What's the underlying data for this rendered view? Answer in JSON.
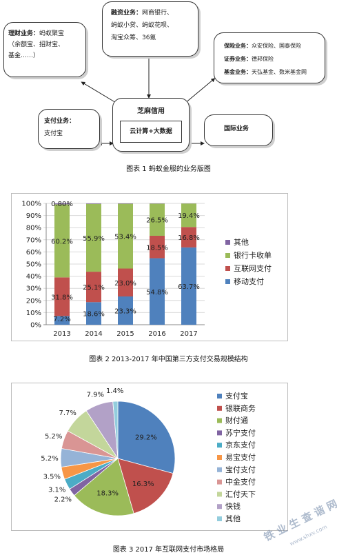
{
  "diagram": {
    "licai": {
      "label": "理财业务：",
      "text": "蚂蚁聚宝",
      "line2": "（余额宝、招财宝、",
      "line3": "基金……）"
    },
    "rongzi": {
      "label": "融资业务：",
      "text": "网商银行、",
      "line2": "蚂蚁小贷、蚂蚁花呗、",
      "line3": "淘宝众筹、36氪"
    },
    "baoxian": {
      "label1": "保险业务：",
      "text1": "众安保险、国泰保险",
      "label2": "证券业务：",
      "text2": "德邦保险",
      "label3": "基金业务：",
      "text3": "天弘基金、数米基金网"
    },
    "zhifu": {
      "label": "支付业务：",
      "text": "支付宝"
    },
    "center": {
      "title": "芝麻信用",
      "inner": "云计算+大数据"
    },
    "guoji": {
      "label": "国际业务"
    }
  },
  "caption1": "图表 1 蚂蚁金服的业务版图",
  "caption2": "图表 2 2013-2017 年中国第三方支付交易规模结构",
  "caption3": "图表 3 2017 年互联网支付市场格局",
  "watermark": {
    "text": "铁 业 生 查 谐 网",
    "sub": "www.shxv.com"
  },
  "chart_data": [
    {
      "type": "bar",
      "stacked": true,
      "categories": [
        "2013",
        "2014",
        "2015",
        "2016",
        "2017"
      ],
      "ylim": [
        0,
        100
      ],
      "yticks": [
        "0%",
        "10%",
        "20%",
        "30%",
        "40%",
        "50%",
        "60%",
        "70%",
        "80%",
        "90%",
        "100%"
      ],
      "series": [
        {
          "name": "移动支付",
          "color": "#4f81bd",
          "values": [
            7.2,
            18.6,
            23.3,
            54.8,
            63.7
          ],
          "labels": [
            "7.2%",
            "18.6%",
            "23.3%",
            "54.8%",
            "63.7%"
          ]
        },
        {
          "name": "互联网支付",
          "color": "#c0504d",
          "values": [
            31.8,
            25.1,
            23.0,
            18.5,
            16.8
          ],
          "labels": [
            "31.8%",
            "25.1%",
            "23.0%",
            "18.5%",
            "16.8%"
          ]
        },
        {
          "name": "银行卡收单",
          "color": "#9bbb59",
          "values": [
            60.2,
            55.9,
            53.4,
            26.5,
            19.4
          ],
          "labels": [
            "60.2%",
            "55.9%",
            "53.4%",
            "26.5%",
            "19.4%"
          ]
        },
        {
          "name": "其他",
          "color": "#8064a2",
          "values": [
            0.8,
            0.4,
            0.3,
            0.2,
            0.1
          ],
          "labels": [
            "0.80%",
            "",
            "",
            "",
            ""
          ]
        }
      ],
      "legend": [
        "其他",
        "银行卡收单",
        "互联网支付",
        "移动支付"
      ],
      "legend_position": "right"
    },
    {
      "type": "pie",
      "labels": [
        "支付宝",
        "银联商务",
        "财付通",
        "苏宁支付",
        "京东支付",
        "易宝支付",
        "宝付支付",
        "中金支付",
        "汇付天下",
        "快钱",
        "其他"
      ],
      "values": [
        29.2,
        16.3,
        18.3,
        2.2,
        3.1,
        3.5,
        5.2,
        5.2,
        7.7,
        7.9,
        1.4
      ],
      "value_labels": [
        "29.2%",
        "16.3%",
        "18.3%",
        "2.2%",
        "3.1%",
        "3.5%",
        "5.2%",
        "5.2%",
        "7.7%",
        "7.9%",
        "1.4%"
      ],
      "colors": [
        "#4f81bd",
        "#c0504d",
        "#9bbb59",
        "#8064a2",
        "#4bacc6",
        "#f79646",
        "#95b3d7",
        "#d99594",
        "#c3d69b",
        "#b2a1c7",
        "#93cddd"
      ],
      "legend_position": "right"
    }
  ]
}
